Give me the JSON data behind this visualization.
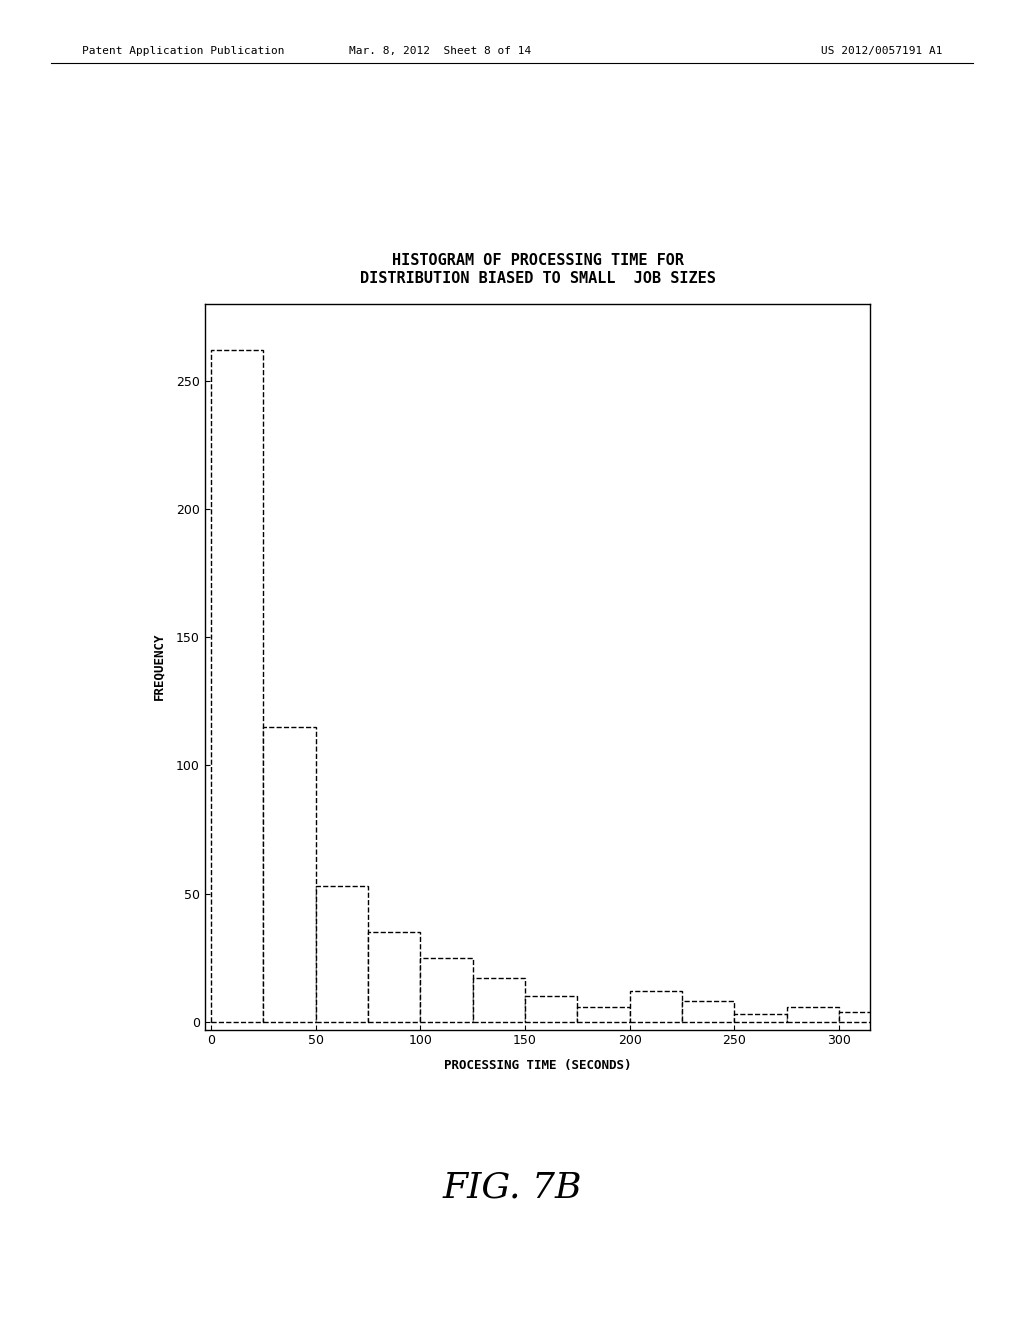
{
  "title_line1": "HISTOGRAM OF PROCESSING TIME FOR",
  "title_line2": "DISTRIBUTION BIASED TO SMALL  JOB SIZES",
  "xlabel": "PROCESSING TIME (SECONDS)",
  "ylabel": "FREQUENCY",
  "fig_label": "FIG. 7B",
  "header_left": "Patent Application Publication",
  "header_mid": "Mar. 8, 2012  Sheet 8 of 14",
  "header_right": "US 2012/0057191 A1",
  "bar_edges": [
    0,
    25,
    50,
    75,
    100,
    125,
    150,
    175,
    200,
    225,
    250,
    275,
    300,
    325
  ],
  "bar_heights": [
    262,
    115,
    53,
    35,
    25,
    17,
    10,
    6,
    12,
    8,
    3,
    6,
    4
  ],
  "xlim": [
    -3,
    315
  ],
  "ylim": [
    -3,
    280
  ],
  "yticks": [
    0,
    50,
    100,
    150,
    200,
    250
  ],
  "xticks": [
    0,
    50,
    100,
    150,
    200,
    250,
    300
  ],
  "background_color": "#ffffff",
  "bar_facecolor": "#ffffff",
  "bar_edgecolor": "#000000",
  "bar_linestyle": "--",
  "bar_linewidth": 1.0,
  "title_fontsize": 11,
  "axis_label_fontsize": 9,
  "tick_fontsize": 9,
  "fig_label_fontsize": 26,
  "header_fontsize": 8
}
